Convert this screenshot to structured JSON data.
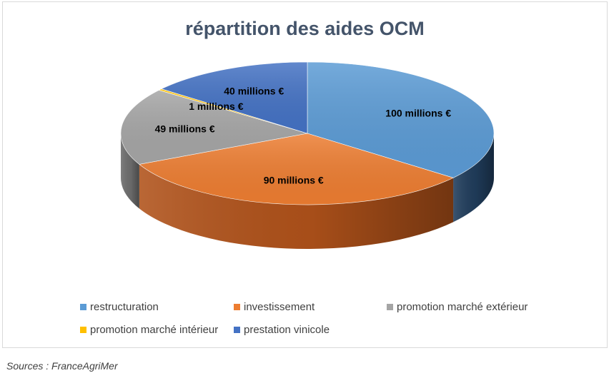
{
  "chart_data": {
    "type": "pie",
    "title": "répartition des aides OCM",
    "unit": "millions €",
    "slices": [
      {
        "name": "restructuration",
        "value": 100,
        "label": "100 millions €",
        "color": "#5b9bd5",
        "side": "#203d5c"
      },
      {
        "name": "investissement",
        "value": 90,
        "label": "90 millions €",
        "color": "#ed7d31",
        "side": "#b0521a"
      },
      {
        "name": "promotion marché extérieur",
        "value": 49,
        "label": "49 millions €",
        "color": "#a5a5a5",
        "side": "#6e6e6e"
      },
      {
        "name": "promotion marché intérieur",
        "value": 1,
        "label": "1 millions €",
        "color": "#ffc000",
        "side": "#b08500"
      },
      {
        "name": "prestation vinicole",
        "value": 40,
        "label": "40 millions €",
        "color": "#4472c4",
        "side": "#2a4880"
      }
    ],
    "legend_position": "bottom"
  },
  "source": "Sources : FranceAgriMer"
}
